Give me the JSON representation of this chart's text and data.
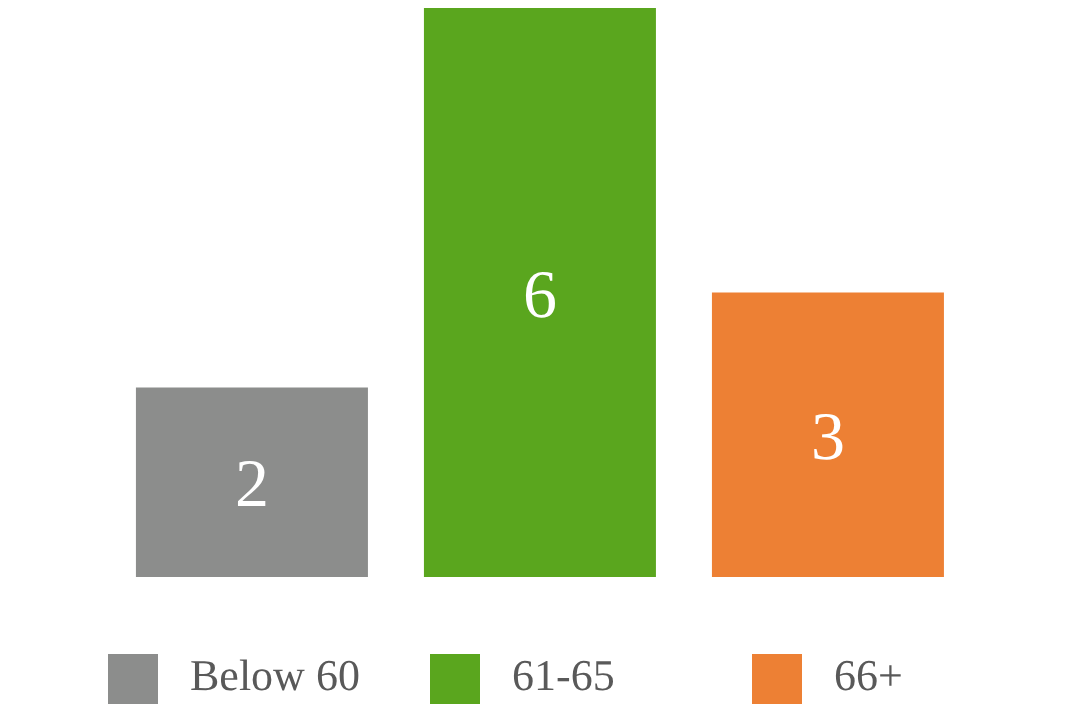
{
  "chart_data": {
    "type": "bar",
    "categories": [
      null,
      null,
      null
    ],
    "stacked": true,
    "data_labels": true,
    "legend": "bottom",
    "tick_labels": false,
    "series": [
      {
        "name": "Below 60",
        "color": "#8c8d8c",
        "values": [
          2,
          null,
          null
        ]
      },
      {
        "name": "61-65",
        "color": "#5aa61e",
        "values": [
          null,
          6,
          null
        ]
      },
      {
        "name": "66+",
        "color": "#ed8034",
        "values": [
          null,
          null,
          3
        ]
      }
    ]
  }
}
